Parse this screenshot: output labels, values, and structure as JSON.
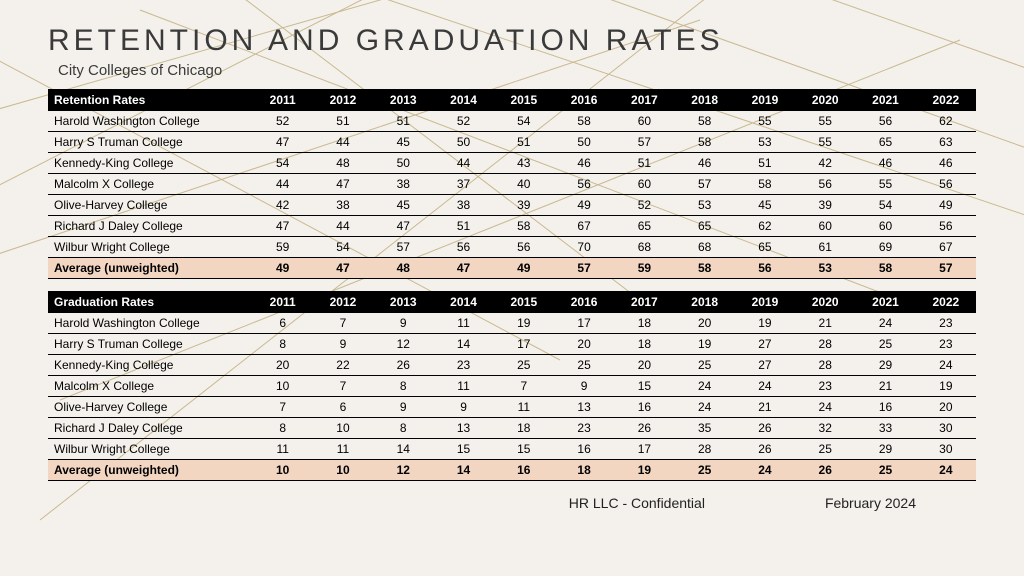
{
  "title": "RETENTION AND GRADUATION RATES",
  "subtitle": "City Colleges of Chicago",
  "years": [
    "2011",
    "2012",
    "2013",
    "2014",
    "2015",
    "2016",
    "2017",
    "2018",
    "2019",
    "2020",
    "2021",
    "2022"
  ],
  "tables": [
    {
      "header": "Retention Rates",
      "rows": [
        {
          "label": "Harold Washington  College",
          "v": [
            "52",
            "51",
            "51",
            "52",
            "54",
            "58",
            "60",
            "58",
            "55",
            "55",
            "56",
            "62"
          ]
        },
        {
          "label": "Harry S Truman  College",
          "v": [
            "47",
            "44",
            "45",
            "50",
            "51",
            "50",
            "57",
            "58",
            "53",
            "55",
            "65",
            "63"
          ]
        },
        {
          "label": "Kennedy-King  College",
          "v": [
            "54",
            "48",
            "50",
            "44",
            "43",
            "46",
            "51",
            "46",
            "51",
            "42",
            "46",
            "46"
          ]
        },
        {
          "label": "Malcolm  X College",
          "v": [
            "44",
            "47",
            "38",
            "37",
            "40",
            "56",
            "60",
            "57",
            "58",
            "56",
            "55",
            "56"
          ]
        },
        {
          "label": "Olive-Harvey  College",
          "v": [
            "42",
            "38",
            "45",
            "38",
            "39",
            "49",
            "52",
            "53",
            "45",
            "39",
            "54",
            "49"
          ]
        },
        {
          "label": "Richard  J Daley  College",
          "v": [
            "47",
            "44",
            "47",
            "51",
            "58",
            "67",
            "65",
            "65",
            "62",
            "60",
            "60",
            "56"
          ]
        },
        {
          "label": "Wilbur  Wright  College",
          "v": [
            "59",
            "54",
            "57",
            "56",
            "56",
            "70",
            "68",
            "68",
            "65",
            "61",
            "69",
            "67"
          ]
        }
      ],
      "avg": {
        "label": "Average (unweighted)",
        "v": [
          "49",
          "47",
          "48",
          "47",
          "49",
          "57",
          "59",
          "58",
          "56",
          "53",
          "58",
          "57"
        ]
      }
    },
    {
      "header": "Graduation  Rates",
      "rows": [
        {
          "label": "Harold Washington  College",
          "v": [
            "6",
            "7",
            "9",
            "11",
            "19",
            "17",
            "18",
            "20",
            "19",
            "21",
            "24",
            "23"
          ]
        },
        {
          "label": "Harry S Truman  College",
          "v": [
            "8",
            "9",
            "12",
            "14",
            "17",
            "20",
            "18",
            "19",
            "27",
            "28",
            "25",
            "23"
          ]
        },
        {
          "label": "Kennedy-King  College",
          "v": [
            "20",
            "22",
            "26",
            "23",
            "25",
            "25",
            "20",
            "25",
            "27",
            "28",
            "29",
            "24"
          ]
        },
        {
          "label": "Malcolm  X College",
          "v": [
            "10",
            "7",
            "8",
            "11",
            "7",
            "9",
            "15",
            "24",
            "24",
            "23",
            "21",
            "19"
          ]
        },
        {
          "label": "Olive-Harvey  College",
          "v": [
            "7",
            "6",
            "9",
            "9",
            "11",
            "13",
            "16",
            "24",
            "21",
            "24",
            "16",
            "20"
          ]
        },
        {
          "label": "Richard  J Daley  College",
          "v": [
            "8",
            "10",
            "8",
            "13",
            "18",
            "23",
            "26",
            "35",
            "26",
            "32",
            "33",
            "30"
          ]
        },
        {
          "label": "Wilbur  Wright  College",
          "v": [
            "11",
            "11",
            "14",
            "15",
            "15",
            "16",
            "17",
            "28",
            "26",
            "25",
            "29",
            "30"
          ]
        }
      ],
      "avg": {
        "label": "Average (unweighted)",
        "v": [
          "10",
          "10",
          "12",
          "14",
          "16",
          "18",
          "19",
          "25",
          "24",
          "26",
          "25",
          "24"
        ]
      }
    }
  ],
  "footer": {
    "left": "HR LLC - Confidential",
    "right": "February 2024"
  },
  "style": {
    "page_bg": "#f4f1ec",
    "line_color": "#c9b98f",
    "header_bg": "#000000",
    "header_fg": "#ffffff",
    "avg_bg": "#f3d6c2",
    "border": "#000000",
    "title_color": "#3a3a3a",
    "title_fontsize": 30,
    "title_letter_spacing": 4,
    "body_fontsize": 12,
    "col_first_width": 190,
    "col_year_width": 56
  }
}
